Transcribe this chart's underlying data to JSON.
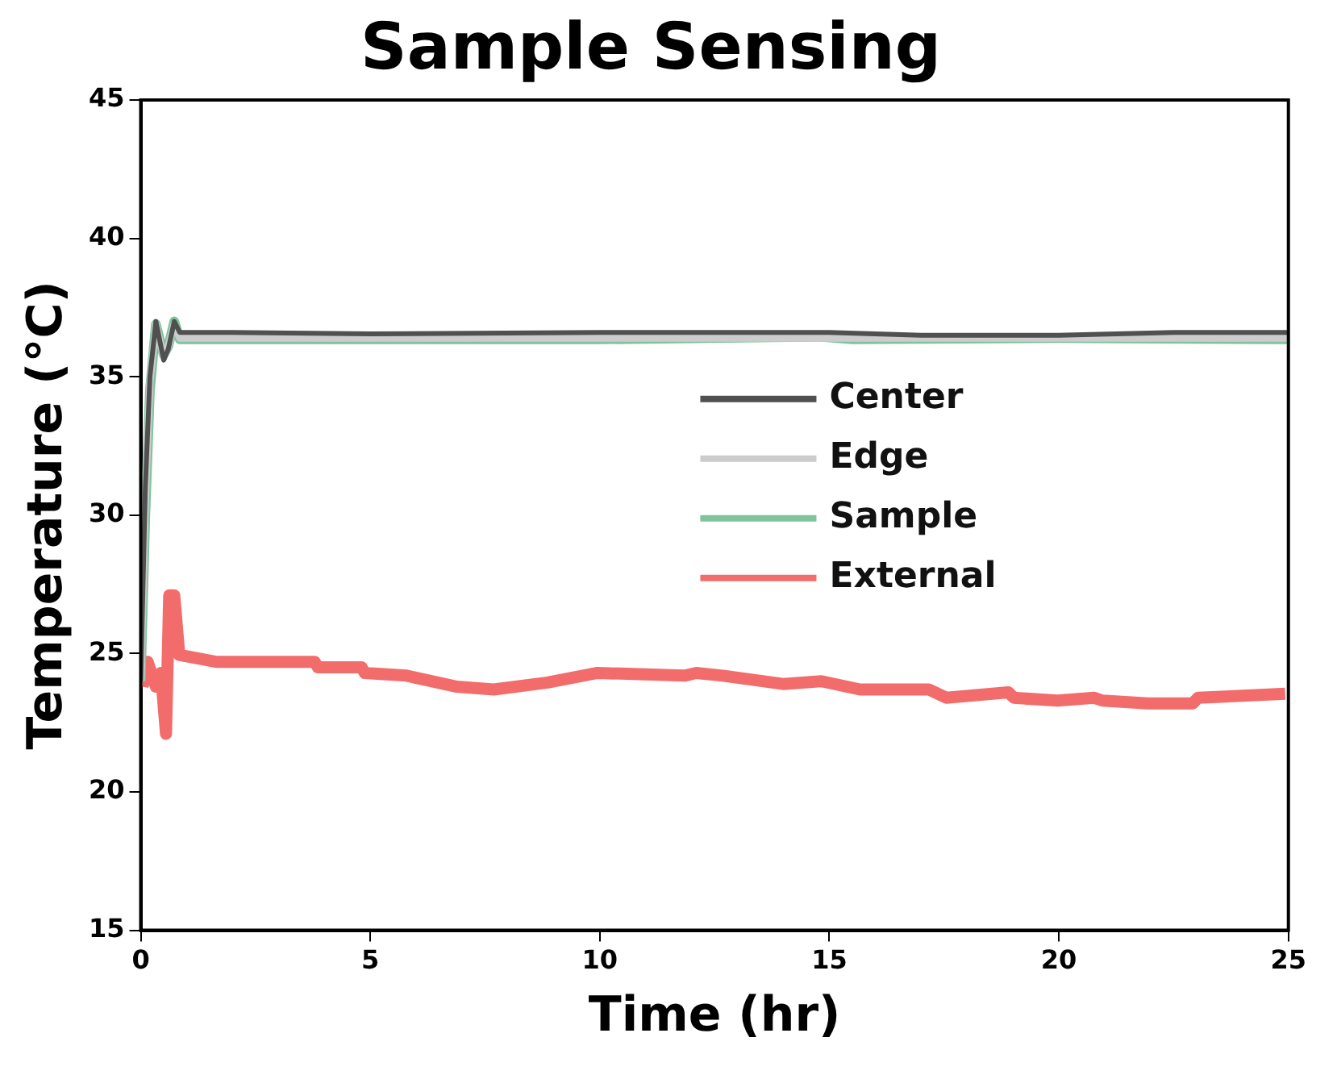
{
  "chart_data": {
    "type": "line",
    "title": "Sample Sensing",
    "xlabel": "Time (hr)",
    "ylabel": "Temperature (°C)",
    "xlim": [
      0,
      25
    ],
    "xticks": [
      0,
      5,
      10,
      15,
      20,
      25
    ],
    "ylim": [
      15,
      45
    ],
    "yticks": [
      15,
      20,
      25,
      30,
      35,
      40,
      45
    ],
    "grid": false,
    "legend": "right",
    "marker": "none",
    "line_style": "solid",
    "series": [
      {
        "name": "Center",
        "color": "#505050",
        "x": [
          0,
          0.1,
          0.2,
          0.33,
          0.5,
          0.6,
          0.73,
          0.85,
          2,
          5,
          10,
          15,
          17,
          20,
          22.5,
          25
        ],
        "values": [
          24,
          31,
          35,
          37,
          35.6,
          36,
          37,
          36.6,
          36.6,
          36.55,
          36.6,
          36.6,
          36.5,
          36.5,
          36.6,
          36.6
        ]
      },
      {
        "name": "Edge",
        "color": "#cccccc",
        "x": [
          0,
          0.1,
          0.2,
          0.33,
          0.5,
          0.6,
          0.73,
          0.85,
          2,
          5,
          10,
          15,
          20,
          25
        ],
        "values": [
          24,
          30.5,
          34.8,
          36.9,
          35.7,
          36.1,
          36.9,
          36.4,
          36.4,
          36.4,
          36.4,
          36.4,
          36.4,
          36.4
        ]
      },
      {
        "name": "Sample",
        "color": "#7ec49c",
        "x": [
          0,
          0.1,
          0.2,
          0.33,
          0.5,
          0.6,
          0.73,
          0.85,
          2,
          5,
          10,
          14.8,
          15.5,
          20,
          25
        ],
        "values": [
          24,
          30,
          34.5,
          36.9,
          35.8,
          36.1,
          37,
          36.35,
          36.35,
          36.35,
          36.35,
          36.45,
          36.35,
          36.4,
          36.35
        ]
      },
      {
        "name": "External",
        "color": "#f36c6c",
        "x": [
          0.04,
          0.15,
          0.33,
          0.44,
          0.55,
          0.62,
          0.73,
          0.84,
          1.64,
          3.79,
          3.86,
          4.81,
          4.88,
          5.79,
          6.89,
          7.69,
          8.86,
          9.95,
          11.85,
          12.1,
          12.68,
          13.99,
          14.83,
          15.67,
          17.17,
          17.55,
          18.9,
          19.02,
          19.97,
          20.77,
          20.95,
          21.94,
          22.92,
          23.03,
          24.93
        ],
        "values": [
          23.8,
          24.7,
          23.8,
          24.3,
          22.1,
          27.1,
          27.1,
          24.95,
          24.7,
          24.7,
          24.5,
          24.5,
          24.3,
          24.2,
          23.8,
          23.7,
          23.95,
          24.3,
          24.2,
          24.3,
          24.2,
          23.9,
          24.0,
          23.7,
          23.7,
          23.4,
          23.6,
          23.4,
          23.3,
          23.4,
          23.3,
          23.2,
          23.2,
          23.4,
          23.55
        ]
      }
    ]
  }
}
